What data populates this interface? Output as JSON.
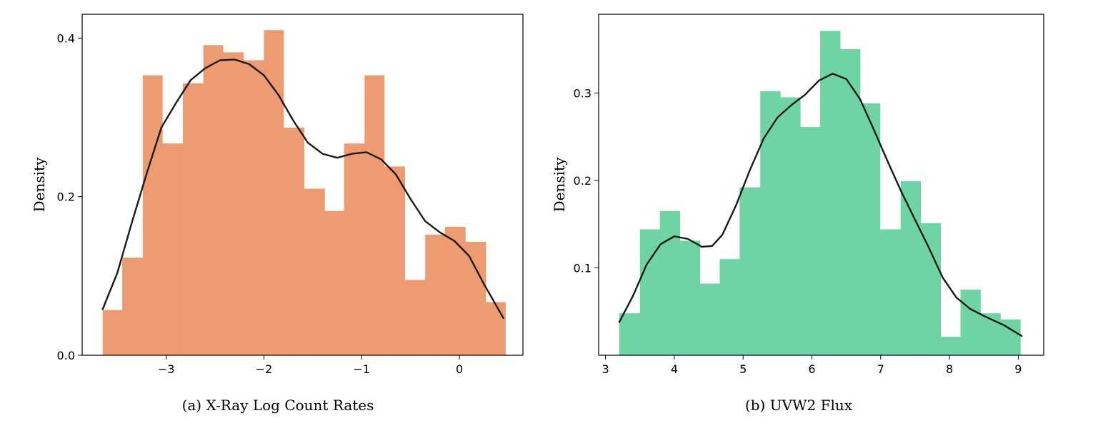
{
  "chart_data": [
    {
      "type": "histogram",
      "panel": "(a)",
      "caption": "(a) X-Ray Log Count Rates",
      "xlabel": "",
      "ylabel": "Density",
      "xlim": [
        -3.86,
        0.65
      ],
      "ylim": [
        0,
        0.43
      ],
      "xticks": [
        -3,
        -2,
        -1,
        0
      ],
      "xtick_labels": [
        "−3",
        "−2",
        "−1",
        "0"
      ],
      "yticks": [
        0.0,
        0.2,
        0.4
      ],
      "ytick_labels": [
        "0.0",
        "0.2",
        "0.4"
      ],
      "bar_color": "#ED9B70",
      "bins": [
        {
          "x0": -3.65,
          "x1": -3.45,
          "y": 0.057
        },
        {
          "x0": -3.45,
          "x1": -3.24,
          "y": 0.123
        },
        {
          "x0": -3.24,
          "x1": -3.04,
          "y": 0.353
        },
        {
          "x0": -3.04,
          "x1": -2.83,
          "y": 0.267
        },
        {
          "x0": -2.83,
          "x1": -2.62,
          "y": 0.343
        },
        {
          "x0": -2.62,
          "x1": -2.42,
          "y": 0.391
        },
        {
          "x0": -2.42,
          "x1": -2.21,
          "y": 0.382
        },
        {
          "x0": -2.21,
          "x1": -2.0,
          "y": 0.372
        },
        {
          "x0": -2.0,
          "x1": -1.8,
          "y": 0.41
        },
        {
          "x0": -1.8,
          "x1": -1.59,
          "y": 0.287
        },
        {
          "x0": -1.59,
          "x1": -1.38,
          "y": 0.21
        },
        {
          "x0": -1.38,
          "x1": -1.18,
          "y": 0.182
        },
        {
          "x0": -1.18,
          "x1": -0.97,
          "y": 0.267
        },
        {
          "x0": -0.97,
          "x1": -0.77,
          "y": 0.353
        },
        {
          "x0": -0.77,
          "x1": -0.56,
          "y": 0.238
        },
        {
          "x0": -0.56,
          "x1": -0.35,
          "y": 0.095
        },
        {
          "x0": -0.35,
          "x1": -0.15,
          "y": 0.152
        },
        {
          "x0": -0.15,
          "x1": 0.06,
          "y": 0.162
        },
        {
          "x0": 0.06,
          "x1": 0.27,
          "y": 0.143
        },
        {
          "x0": 0.27,
          "x1": 0.47,
          "y": 0.067
        }
      ],
      "kde": {
        "color": "#1a1a1a",
        "points": [
          [
            -3.65,
            0.058
          ],
          [
            -3.5,
            0.104
          ],
          [
            -3.35,
            0.168
          ],
          [
            -3.2,
            0.229
          ],
          [
            -3.05,
            0.287
          ],
          [
            -2.9,
            0.318
          ],
          [
            -2.75,
            0.347
          ],
          [
            -2.6,
            0.362
          ],
          [
            -2.45,
            0.372
          ],
          [
            -2.3,
            0.373
          ],
          [
            -2.15,
            0.367
          ],
          [
            -2.0,
            0.353
          ],
          [
            -1.85,
            0.328
          ],
          [
            -1.7,
            0.296
          ],
          [
            -1.55,
            0.268
          ],
          [
            -1.4,
            0.254
          ],
          [
            -1.25,
            0.249
          ],
          [
            -1.1,
            0.254
          ],
          [
            -0.95,
            0.256
          ],
          [
            -0.8,
            0.247
          ],
          [
            -0.65,
            0.228
          ],
          [
            -0.5,
            0.197
          ],
          [
            -0.35,
            0.169
          ],
          [
            -0.2,
            0.155
          ],
          [
            -0.05,
            0.144
          ],
          [
            0.1,
            0.125
          ],
          [
            0.25,
            0.09
          ],
          [
            0.45,
            0.047
          ]
        ]
      }
    },
    {
      "type": "histogram",
      "panel": "(b)",
      "caption": "(b) UVW2 Flux",
      "xlabel": "",
      "ylabel": "Density",
      "xlim": [
        2.9,
        9.37
      ],
      "ylim": [
        0,
        0.39
      ],
      "xticks": [
        3,
        4,
        5,
        6,
        7,
        8,
        9
      ],
      "xtick_labels": [
        "3",
        "4",
        "5",
        "6",
        "7",
        "8",
        "9"
      ],
      "yticks": [
        0.1,
        0.2,
        0.3
      ],
      "ytick_labels": [
        "0.1",
        "0.2",
        "0.3"
      ],
      "bar_color": "#6FD4A3",
      "bins": [
        {
          "x0": 3.2,
          "x1": 3.5,
          "y": 0.048
        },
        {
          "x0": 3.5,
          "x1": 3.79,
          "y": 0.144
        },
        {
          "x0": 3.79,
          "x1": 4.08,
          "y": 0.165
        },
        {
          "x0": 4.08,
          "x1": 4.37,
          "y": 0.131
        },
        {
          "x0": 4.37,
          "x1": 4.66,
          "y": 0.082
        },
        {
          "x0": 4.66,
          "x1": 4.95,
          "y": 0.11
        },
        {
          "x0": 4.95,
          "x1": 5.25,
          "y": 0.192
        },
        {
          "x0": 5.25,
          "x1": 5.54,
          "y": 0.302
        },
        {
          "x0": 5.54,
          "x1": 5.83,
          "y": 0.295
        },
        {
          "x0": 5.83,
          "x1": 6.12,
          "y": 0.261
        },
        {
          "x0": 6.12,
          "x1": 6.41,
          "y": 0.371
        },
        {
          "x0": 6.41,
          "x1": 6.7,
          "y": 0.35
        },
        {
          "x0": 6.7,
          "x1": 6.99,
          "y": 0.288
        },
        {
          "x0": 6.99,
          "x1": 7.29,
          "y": 0.144
        },
        {
          "x0": 7.29,
          "x1": 7.58,
          "y": 0.199
        },
        {
          "x0": 7.58,
          "x1": 7.87,
          "y": 0.151
        },
        {
          "x0": 7.87,
          "x1": 8.16,
          "y": 0.021
        },
        {
          "x0": 8.16,
          "x1": 8.45,
          "y": 0.075
        },
        {
          "x0": 8.45,
          "x1": 8.74,
          "y": 0.048
        },
        {
          "x0": 8.74,
          "x1": 9.03,
          "y": 0.041
        }
      ],
      "kde": {
        "color": "#1a1a1a",
        "points": [
          [
            3.2,
            0.038
          ],
          [
            3.4,
            0.068
          ],
          [
            3.6,
            0.104
          ],
          [
            3.8,
            0.127
          ],
          [
            4.0,
            0.136
          ],
          [
            4.2,
            0.133
          ],
          [
            4.4,
            0.124
          ],
          [
            4.55,
            0.125
          ],
          [
            4.7,
            0.138
          ],
          [
            4.9,
            0.172
          ],
          [
            5.1,
            0.212
          ],
          [
            5.3,
            0.248
          ],
          [
            5.5,
            0.272
          ],
          [
            5.7,
            0.286
          ],
          [
            5.9,
            0.298
          ],
          [
            6.1,
            0.314
          ],
          [
            6.3,
            0.322
          ],
          [
            6.5,
            0.316
          ],
          [
            6.7,
            0.293
          ],
          [
            6.9,
            0.258
          ],
          [
            7.1,
            0.222
          ],
          [
            7.3,
            0.187
          ],
          [
            7.5,
            0.155
          ],
          [
            7.7,
            0.123
          ],
          [
            7.9,
            0.089
          ],
          [
            8.1,
            0.066
          ],
          [
            8.3,
            0.053
          ],
          [
            8.5,
            0.045
          ],
          [
            8.8,
            0.034
          ],
          [
            9.05,
            0.022
          ]
        ]
      }
    }
  ]
}
